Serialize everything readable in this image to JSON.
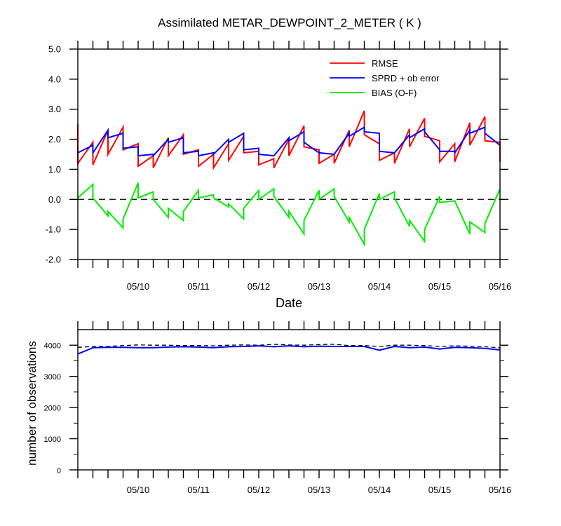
{
  "page": {
    "background": "#ffffff"
  },
  "chart_data": [
    {
      "type": "line",
      "title": "Assimilated METAR_DEWPOINT_2_METER ( K )",
      "xlabel": "Date",
      "ylabel": "",
      "ylim": [
        -2.0,
        5.0
      ],
      "yticks": [
        "5.0",
        "4.0",
        "3.0",
        "2.0",
        "1.0",
        "0.0",
        "-1.0",
        "-2.0"
      ],
      "xlim": [
        0,
        84
      ],
      "x_tick_labels": [
        {
          "x": 12,
          "label": "05/10"
        },
        {
          "x": 24,
          "label": "05/11"
        },
        {
          "x": 36,
          "label": "05/12"
        },
        {
          "x": 48,
          "label": "05/13"
        },
        {
          "x": 60,
          "label": "05/14"
        },
        {
          "x": 72,
          "label": "05/15"
        },
        {
          "x": 84,
          "label": "05/16"
        }
      ],
      "legend": {
        "placement": "top-right"
      },
      "grid": false,
      "reference_line": {
        "y": 0.0,
        "style": "dashed"
      },
      "series": [
        {
          "name": "RMSE",
          "color": "#ff0000",
          "x": [
            0,
            0,
            3,
            3,
            6,
            6,
            9,
            9,
            12,
            12,
            15,
            15,
            18,
            18,
            21,
            21,
            24,
            24,
            27,
            27,
            30,
            30,
            33,
            33,
            36,
            36,
            39,
            39,
            42,
            42,
            45,
            45,
            48,
            48,
            51,
            51,
            54,
            54,
            57,
            57,
            60,
            60,
            63,
            63,
            66,
            66,
            69,
            69,
            72,
            72,
            75,
            75,
            78,
            78,
            81,
            81,
            84,
            84
          ],
          "values": [
            2.5,
            1.2,
            1.9,
            1.15,
            2.3,
            1.5,
            2.4,
            1.65,
            1.85,
            1.1,
            1.45,
            1.05,
            2.05,
            1.45,
            2.15,
            1.5,
            1.65,
            1.1,
            1.5,
            1.05,
            1.85,
            1.3,
            2.1,
            1.55,
            1.6,
            1.15,
            1.35,
            1.05,
            2.0,
            1.45,
            2.45,
            1.75,
            1.65,
            1.2,
            1.5,
            1.2,
            2.3,
            1.75,
            2.95,
            2.15,
            1.85,
            1.3,
            1.55,
            1.2,
            2.35,
            1.75,
            2.7,
            2.1,
            1.95,
            1.25,
            1.85,
            1.25,
            2.55,
            1.8,
            2.75,
            1.95,
            1.9,
            1.25
          ]
        },
        {
          "name": "SPRD + ob error",
          "color": "#0000ff",
          "x": [
            0,
            3,
            3,
            6,
            6,
            9,
            9,
            12,
            12,
            15,
            15,
            18,
            18,
            21,
            21,
            24,
            24,
            27,
            27,
            30,
            30,
            33,
            33,
            36,
            36,
            39,
            39,
            42,
            42,
            45,
            45,
            48,
            48,
            51,
            51,
            54,
            54,
            57,
            57,
            60,
            60,
            63,
            63,
            66,
            66,
            69,
            69,
            72,
            72,
            75,
            75,
            78,
            78,
            81,
            81,
            84
          ],
          "values": [
            1.55,
            1.8,
            1.55,
            2.3,
            2.05,
            2.2,
            1.7,
            1.75,
            1.45,
            1.5,
            1.45,
            2.0,
            1.9,
            2.05,
            1.55,
            1.6,
            1.45,
            1.55,
            1.5,
            2.0,
            1.9,
            2.2,
            1.65,
            1.7,
            1.5,
            1.45,
            1.45,
            2.05,
            1.95,
            2.25,
            1.9,
            1.55,
            1.55,
            1.5,
            1.5,
            2.2,
            2.1,
            2.4,
            2.25,
            2.2,
            1.6,
            1.55,
            1.55,
            2.15,
            2.05,
            2.35,
            2.25,
            1.65,
            1.6,
            1.6,
            1.55,
            2.3,
            2.2,
            2.4,
            2.2,
            1.8
          ]
        },
        {
          "name": "BIAS (O-F)",
          "color": "#00ee00",
          "x": [
            0,
            3,
            3,
            6,
            6,
            9,
            9,
            12,
            12,
            15,
            15,
            18,
            18,
            21,
            21,
            24,
            24,
            27,
            27,
            30,
            30,
            33,
            33,
            36,
            36,
            39,
            39,
            42,
            42,
            45,
            45,
            48,
            48,
            51,
            51,
            54,
            54,
            57,
            57,
            60,
            60,
            63,
            63,
            66,
            66,
            69,
            69,
            72,
            72,
            75,
            75,
            78,
            78,
            81,
            81,
            84
          ],
          "values": [
            0.05,
            0.5,
            0.05,
            -0.55,
            -0.4,
            -0.95,
            -0.65,
            0.55,
            0.05,
            0.25,
            0.0,
            -0.6,
            -0.3,
            -0.7,
            -0.4,
            0.3,
            0.05,
            0.15,
            0.05,
            -0.25,
            -0.15,
            -0.65,
            -0.3,
            0.3,
            0.0,
            0.35,
            0.1,
            -0.6,
            -0.4,
            -1.15,
            -0.7,
            0.3,
            0.0,
            0.35,
            0.1,
            -0.75,
            -0.6,
            -1.5,
            -1.0,
            0.2,
            0.0,
            0.25,
            0.05,
            -0.9,
            -0.7,
            -1.4,
            -1.0,
            0.1,
            -0.1,
            -0.05,
            -0.05,
            -1.15,
            -0.75,
            -1.1,
            -0.8,
            0.35
          ]
        }
      ]
    },
    {
      "type": "line",
      "title": "",
      "xlabel": "",
      "ylabel": "number of observations",
      "ylim": [
        0,
        4500
      ],
      "yticks": [
        "4000",
        "3000",
        "2000",
        "1000",
        "0"
      ],
      "xlim": [
        0,
        84
      ],
      "x_tick_labels": [
        {
          "x": 12,
          "label": "05/10"
        },
        {
          "x": 24,
          "label": "05/11"
        },
        {
          "x": 36,
          "label": "05/12"
        },
        {
          "x": 48,
          "label": "05/13"
        },
        {
          "x": 60,
          "label": "05/14"
        },
        {
          "x": 72,
          "label": "05/15"
        },
        {
          "x": 84,
          "label": "05/16"
        }
      ],
      "grid": false,
      "series": [
        {
          "name": "",
          "color": "#000000",
          "style": "dashed",
          "x": [
            0,
            3,
            6,
            9,
            12,
            15,
            18,
            21,
            24,
            27,
            30,
            33,
            36,
            39,
            42,
            45,
            48,
            51,
            54,
            57,
            60,
            63,
            66,
            69,
            72,
            75,
            78,
            81,
            84
          ],
          "values": [
            3930,
            3960,
            3960,
            3990,
            4010,
            4000,
            4000,
            3990,
            3990,
            3980,
            4000,
            4010,
            4000,
            4030,
            4010,
            4000,
            4020,
            4030,
            3990,
            3990,
            3960,
            4000,
            4000,
            3990,
            3960,
            3980,
            3970,
            3950,
            3920
          ]
        },
        {
          "name": "",
          "color": "#0000ff",
          "style": "solid",
          "x": [
            0,
            3,
            6,
            9,
            12,
            15,
            18,
            21,
            24,
            27,
            30,
            33,
            36,
            39,
            42,
            45,
            48,
            51,
            54,
            57,
            60,
            63,
            66,
            69,
            72,
            75,
            78,
            81,
            84
          ],
          "values": [
            3720,
            3920,
            3930,
            3930,
            3920,
            3920,
            3940,
            3950,
            3940,
            3920,
            3950,
            3960,
            3980,
            3950,
            3980,
            3950,
            3970,
            3960,
            3960,
            3960,
            3840,
            3960,
            3920,
            3940,
            3880,
            3930,
            3920,
            3900,
            3850
          ]
        }
      ]
    }
  ]
}
